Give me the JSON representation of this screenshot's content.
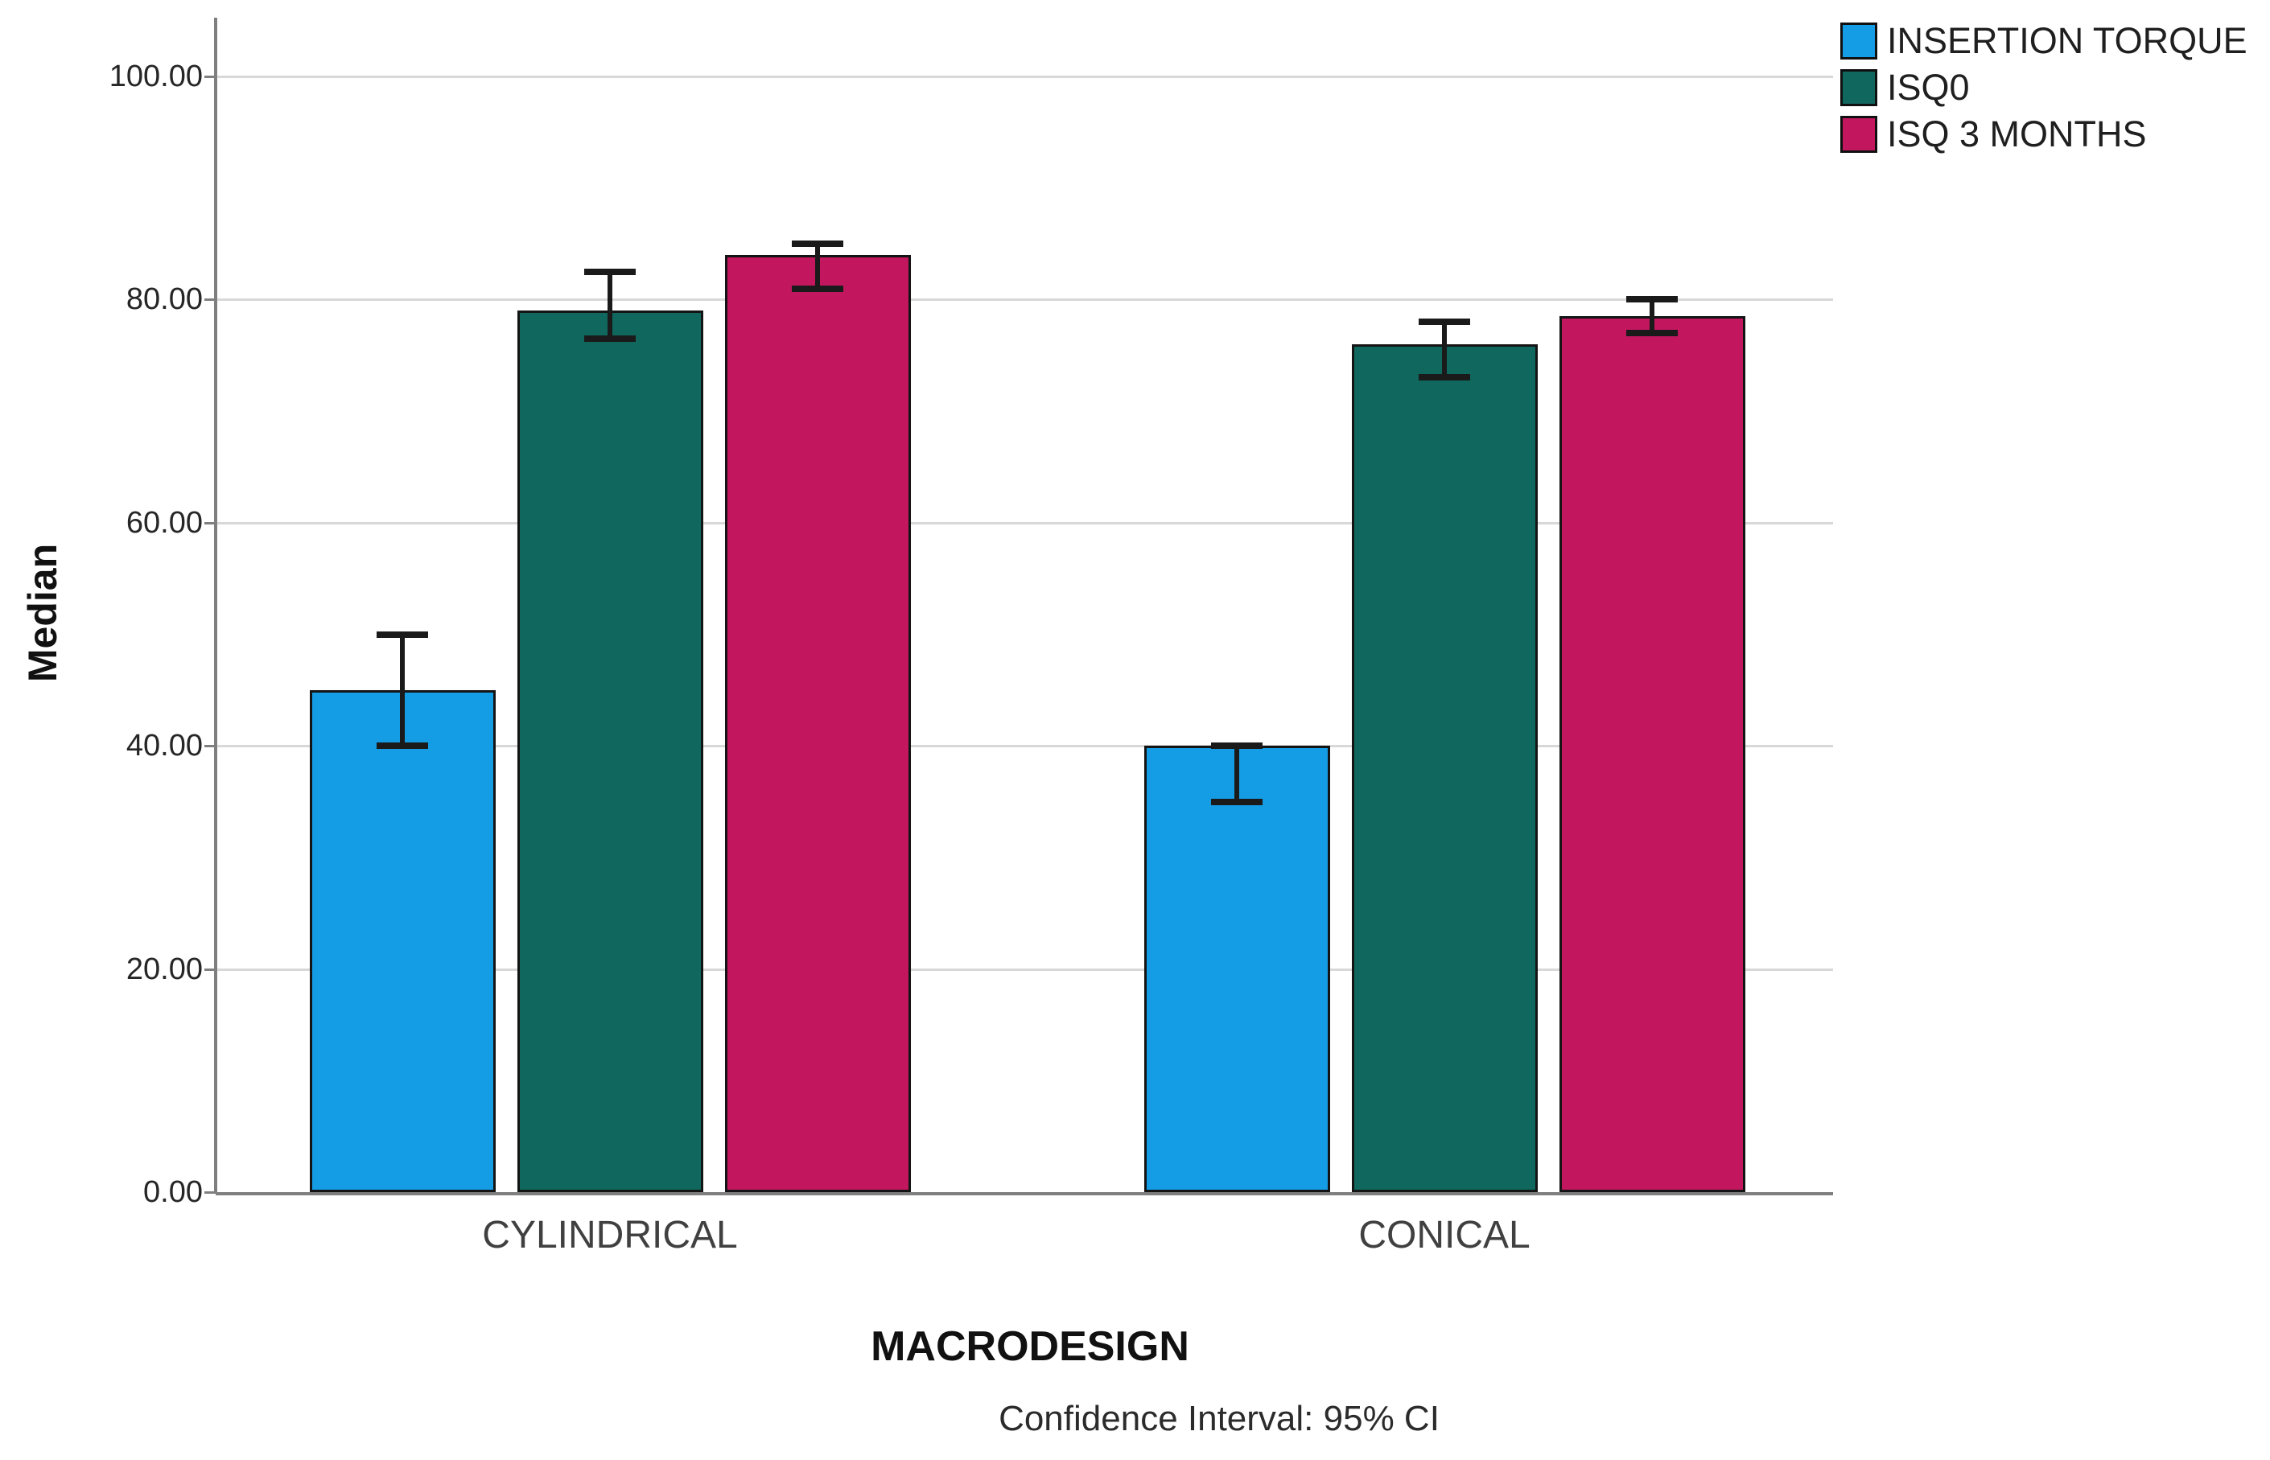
{
  "chart_data": {
    "type": "bar",
    "title": "",
    "categories": [
      "CYLINDRICAL",
      "CONICAL"
    ],
    "series": [
      {
        "name": "INSERTION TORQUE",
        "color": "#149CE4",
        "values": [
          45,
          40
        ],
        "ci_low": [
          40,
          35
        ],
        "ci_high": [
          50,
          40
        ]
      },
      {
        "name": "ISQ0",
        "color": "#0F675D",
        "values": [
          79,
          76
        ],
        "ci_low": [
          76.5,
          73
        ],
        "ci_high": [
          82.5,
          78
        ]
      },
      {
        "name": "ISQ 3 MONTHS",
        "color": "#C2175E",
        "values": [
          84,
          78.5
        ],
        "ci_low": [
          81,
          77
        ],
        "ci_high": [
          85,
          80
        ]
      }
    ],
    "xlabel": "MACRODESIGN",
    "ylabel": "Median",
    "caption": "Confidence Interval: 95% CI",
    "error_bars": "95% CI",
    "ylim": [
      0,
      105
    ],
    "yticks": [
      0,
      20,
      40,
      60,
      80,
      100
    ],
    "ytick_labels": [
      "0.00",
      "20.00",
      "40.00",
      "60.00",
      "80.00",
      "100.00"
    ],
    "grid": true,
    "legend_position": "top-right",
    "colors": {
      "grid": "#D8D8D8",
      "axis": "#7F7F7F",
      "bar_border": "#141414",
      "error_bar": "#1A1A1A",
      "tick_text": "#262626"
    }
  }
}
